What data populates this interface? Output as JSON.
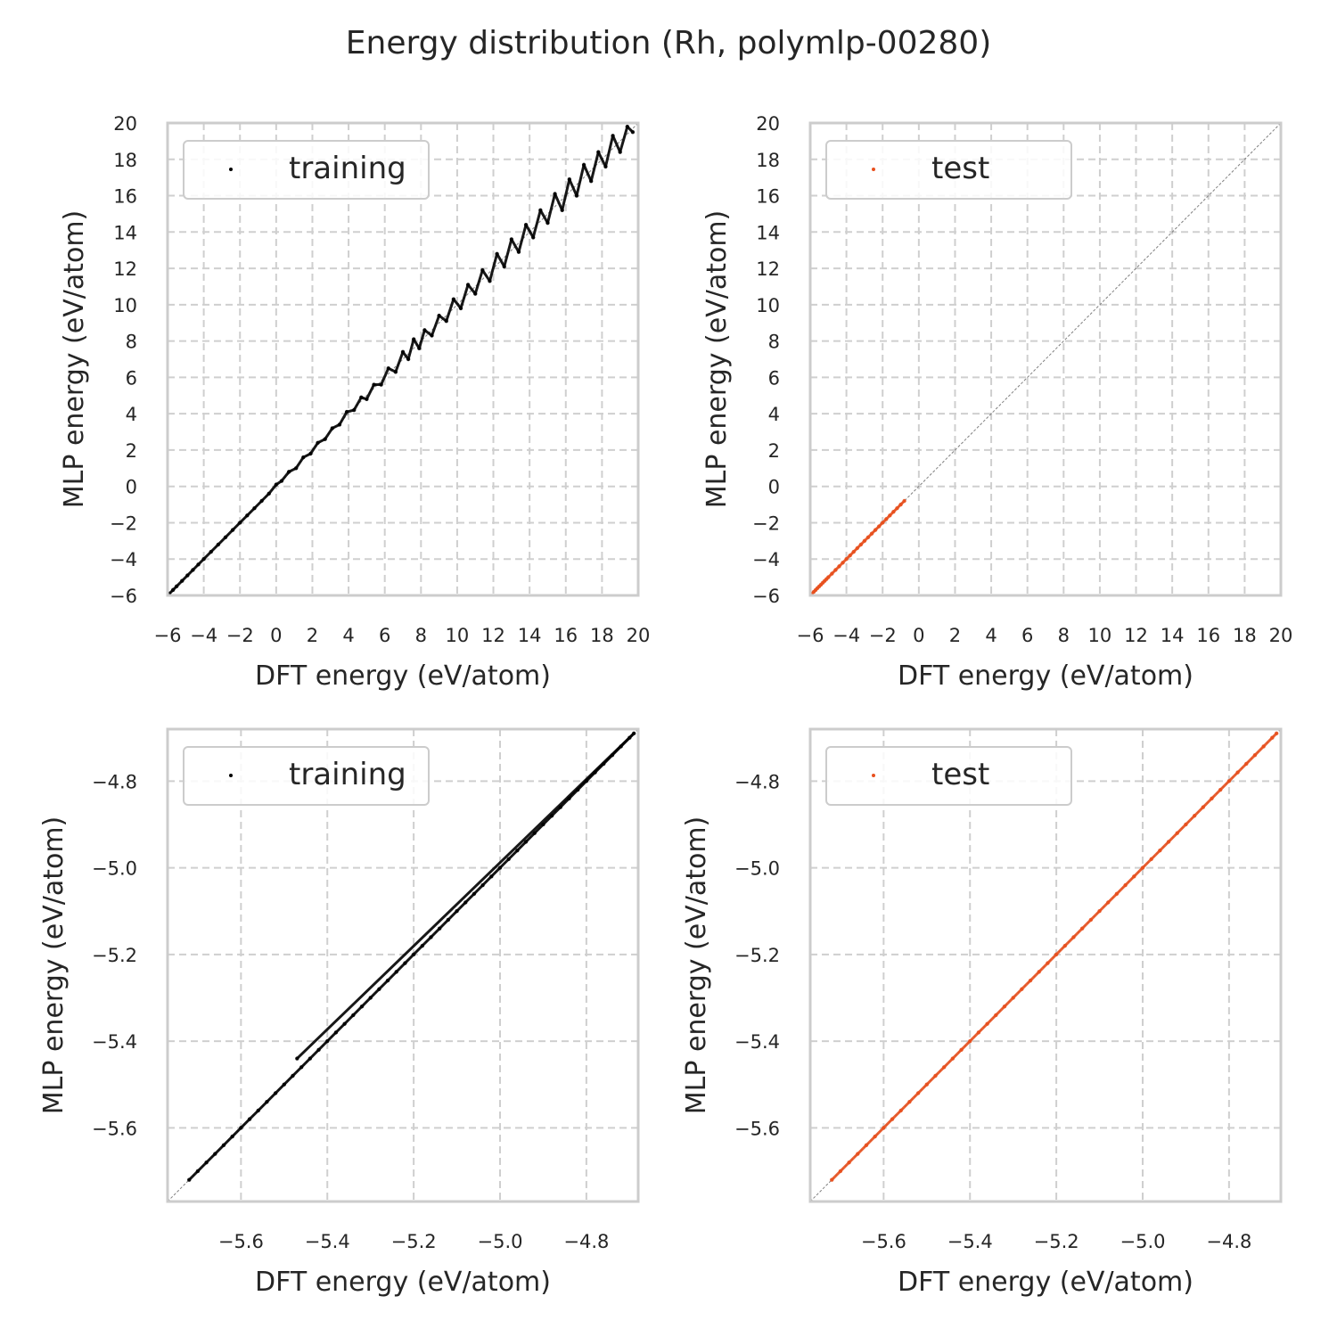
{
  "figure": {
    "title": "Energy distribution (Rh, polymlp-00280)",
    "colors": {
      "training": "#000000",
      "test": "#e8501e",
      "grid": "#cfcfcf",
      "frame": "#cccccc",
      "diagonal": "#808080"
    }
  },
  "chart_data": [
    {
      "type": "scatter",
      "panel": "top-left",
      "xlabel": "DFT energy (eV/atom)",
      "ylabel": "MLP energy (eV/atom)",
      "xlim": [
        -6,
        20
      ],
      "ylim": [
        -6,
        20
      ],
      "xticks": [
        -6,
        -4,
        -2,
        0,
        2,
        4,
        6,
        8,
        10,
        12,
        14,
        16,
        18,
        20
      ],
      "yticks": [
        -6,
        -4,
        -2,
        0,
        2,
        4,
        6,
        8,
        10,
        12,
        14,
        16,
        18,
        20
      ],
      "tick_decimals": 0,
      "grid": true,
      "legend_position": "top-left",
      "diagonal": true,
      "series": [
        {
          "name": "training",
          "color": "#000000",
          "x": [
            -5.9,
            -5.7,
            -5.5,
            -5.2,
            -4.9,
            -4.6,
            -4.3,
            -4.0,
            -3.6,
            -3.2,
            -2.8,
            -2.4,
            -2.0,
            -1.6,
            -1.2,
            -0.8,
            -0.4,
            0.0,
            0.3,
            0.7,
            1.1,
            1.5,
            1.9,
            2.3,
            2.7,
            3.1,
            3.5,
            3.9,
            4.3,
            4.7,
            5.0,
            5.4,
            5.8,
            6.2,
            6.6,
            7.0,
            7.3,
            7.6,
            7.9,
            8.2,
            8.6,
            9.0,
            9.4,
            9.8,
            10.2,
            10.6,
            11.0,
            11.4,
            11.8,
            12.2,
            12.6,
            13.0,
            13.4,
            13.8,
            14.2,
            14.6,
            15.0,
            15.4,
            15.8,
            16.2,
            16.6,
            17.0,
            17.4,
            17.8,
            18.2,
            18.6,
            19.0,
            19.4,
            19.7
          ],
          "y": [
            -5.9,
            -5.7,
            -5.5,
            -5.2,
            -4.9,
            -4.6,
            -4.3,
            -4.0,
            -3.6,
            -3.2,
            -2.8,
            -2.4,
            -2.0,
            -1.6,
            -1.2,
            -0.8,
            -0.4,
            0.1,
            0.3,
            0.8,
            1.0,
            1.6,
            1.8,
            2.4,
            2.6,
            3.2,
            3.4,
            4.1,
            4.2,
            4.9,
            4.8,
            5.6,
            5.6,
            6.5,
            6.3,
            7.4,
            7.0,
            8.1,
            7.6,
            8.6,
            8.3,
            9.4,
            9.1,
            10.3,
            9.8,
            11.1,
            10.6,
            11.9,
            11.3,
            12.8,
            12.1,
            13.6,
            12.9,
            14.4,
            13.7,
            15.2,
            14.5,
            16.1,
            15.2,
            16.9,
            16.0,
            17.7,
            16.8,
            18.4,
            17.6,
            19.3,
            18.4,
            19.8,
            19.5
          ]
        }
      ]
    },
    {
      "type": "scatter",
      "panel": "top-right",
      "xlabel": "DFT energy (eV/atom)",
      "ylabel": "MLP energy (eV/atom)",
      "xlim": [
        -6,
        20
      ],
      "ylim": [
        -6,
        20
      ],
      "xticks": [
        -6,
        -4,
        -2,
        0,
        2,
        4,
        6,
        8,
        10,
        12,
        14,
        16,
        18,
        20
      ],
      "yticks": [
        -6,
        -4,
        -2,
        0,
        2,
        4,
        6,
        8,
        10,
        12,
        14,
        16,
        18,
        20
      ],
      "tick_decimals": 0,
      "grid": true,
      "legend_position": "top-left",
      "diagonal": true,
      "series": [
        {
          "name": "test",
          "color": "#e8501e",
          "x": [
            -5.9,
            -5.8,
            -5.7,
            -5.6,
            -5.5,
            -5.4,
            -5.3,
            -5.2,
            -5.1,
            -5.0,
            -4.8,
            -4.6,
            -4.4,
            -4.2,
            -4.0,
            -3.8,
            -3.6,
            -3.4,
            -3.2,
            -3.0,
            -2.8,
            -2.6,
            -2.4,
            -2.2,
            -2.0,
            -1.8,
            -1.6,
            -1.4,
            -1.2,
            -1.0,
            -0.8
          ],
          "y": [
            -5.9,
            -5.8,
            -5.7,
            -5.6,
            -5.5,
            -5.4,
            -5.3,
            -5.2,
            -5.1,
            -5.0,
            -4.8,
            -4.6,
            -4.4,
            -4.2,
            -4.0,
            -3.8,
            -3.6,
            -3.4,
            -3.2,
            -3.0,
            -2.8,
            -2.6,
            -2.4,
            -2.2,
            -2.0,
            -1.8,
            -1.6,
            -1.4,
            -1.2,
            -1.0,
            -0.8
          ]
        }
      ]
    },
    {
      "type": "scatter",
      "panel": "bottom-left",
      "xlabel": "DFT energy (eV/atom)",
      "ylabel": "MLP energy (eV/atom)",
      "xlim": [
        -5.77,
        -4.68
      ],
      "ylim": [
        -5.77,
        -4.68
      ],
      "xticks": [
        -5.6,
        -5.4,
        -5.2,
        -5.0,
        -4.8
      ],
      "yticks": [
        -5.6,
        -5.4,
        -5.2,
        -5.0,
        -4.8
      ],
      "tick_decimals": 1,
      "grid": true,
      "legend_position": "top-left",
      "diagonal": true,
      "series": [
        {
          "name": "training",
          "color": "#000000",
          "x": [
            -5.72,
            -5.7,
            -5.68,
            -5.66,
            -5.64,
            -5.62,
            -5.6,
            -5.58,
            -5.56,
            -5.54,
            -5.52,
            -5.5,
            -5.48,
            -5.46,
            -5.44,
            -5.42,
            -5.4,
            -5.38,
            -5.36,
            -5.34,
            -5.32,
            -5.3,
            -5.28,
            -5.26,
            -5.24,
            -5.22,
            -5.2,
            -5.18,
            -5.16,
            -5.14,
            -5.12,
            -5.1,
            -5.08,
            -5.06,
            -5.04,
            -5.02,
            -5.0,
            -4.98,
            -4.96,
            -4.94,
            -4.92,
            -4.9,
            -4.88,
            -4.86,
            -4.84,
            -4.82,
            -4.8,
            -4.78,
            -4.76,
            -4.74,
            -4.72,
            -4.7,
            -4.69,
            -5.47
          ],
          "y": [
            -5.72,
            -5.7,
            -5.68,
            -5.66,
            -5.64,
            -5.62,
            -5.6,
            -5.58,
            -5.56,
            -5.54,
            -5.52,
            -5.5,
            -5.48,
            -5.46,
            -5.44,
            -5.42,
            -5.4,
            -5.38,
            -5.36,
            -5.34,
            -5.32,
            -5.3,
            -5.28,
            -5.26,
            -5.24,
            -5.22,
            -5.2,
            -5.18,
            -5.16,
            -5.14,
            -5.12,
            -5.1,
            -5.08,
            -5.06,
            -5.04,
            -5.02,
            -5.0,
            -4.98,
            -4.96,
            -4.94,
            -4.92,
            -4.9,
            -4.88,
            -4.86,
            -4.84,
            -4.82,
            -4.8,
            -4.78,
            -4.76,
            -4.74,
            -4.72,
            -4.7,
            -4.69,
            -5.44
          ]
        }
      ]
    },
    {
      "type": "scatter",
      "panel": "bottom-right",
      "xlabel": "DFT energy (eV/atom)",
      "ylabel": "MLP energy (eV/atom)",
      "xlim": [
        -5.77,
        -4.68
      ],
      "ylim": [
        -5.77,
        -4.68
      ],
      "xticks": [
        -5.6,
        -5.4,
        -5.2,
        -5.0,
        -4.8
      ],
      "yticks": [
        -5.6,
        -5.4,
        -5.2,
        -5.0,
        -4.8
      ],
      "tick_decimals": 1,
      "grid": true,
      "legend_position": "top-left",
      "diagonal": true,
      "series": [
        {
          "name": "test",
          "color": "#e8501e",
          "x": [
            -5.72,
            -5.7,
            -5.68,
            -5.66,
            -5.64,
            -5.62,
            -5.6,
            -5.58,
            -5.56,
            -5.54,
            -5.52,
            -5.5,
            -5.48,
            -5.46,
            -5.44,
            -5.42,
            -5.4,
            -5.38,
            -5.36,
            -5.34,
            -5.32,
            -5.3,
            -5.28,
            -5.26,
            -5.24,
            -5.22,
            -5.2,
            -5.18,
            -5.16,
            -5.14,
            -5.12,
            -5.1,
            -5.08,
            -5.06,
            -5.04,
            -5.02,
            -5.0,
            -4.98,
            -4.96,
            -4.94,
            -4.92,
            -4.9,
            -4.88,
            -4.86,
            -4.84,
            -4.82,
            -4.8,
            -4.78,
            -4.76,
            -4.74,
            -4.72,
            -4.7,
            -4.69
          ],
          "y": [
            -5.72,
            -5.7,
            -5.68,
            -5.66,
            -5.64,
            -5.62,
            -5.6,
            -5.58,
            -5.56,
            -5.54,
            -5.52,
            -5.5,
            -5.48,
            -5.46,
            -5.44,
            -5.42,
            -5.4,
            -5.38,
            -5.36,
            -5.34,
            -5.32,
            -5.3,
            -5.28,
            -5.26,
            -5.24,
            -5.22,
            -5.2,
            -5.18,
            -5.16,
            -5.14,
            -5.12,
            -5.1,
            -5.08,
            -5.06,
            -5.04,
            -5.02,
            -5.0,
            -4.98,
            -4.96,
            -4.94,
            -4.92,
            -4.9,
            -4.88,
            -4.86,
            -4.84,
            -4.82,
            -4.8,
            -4.78,
            -4.76,
            -4.74,
            -4.72,
            -4.7,
            -4.69
          ]
        }
      ]
    }
  ]
}
